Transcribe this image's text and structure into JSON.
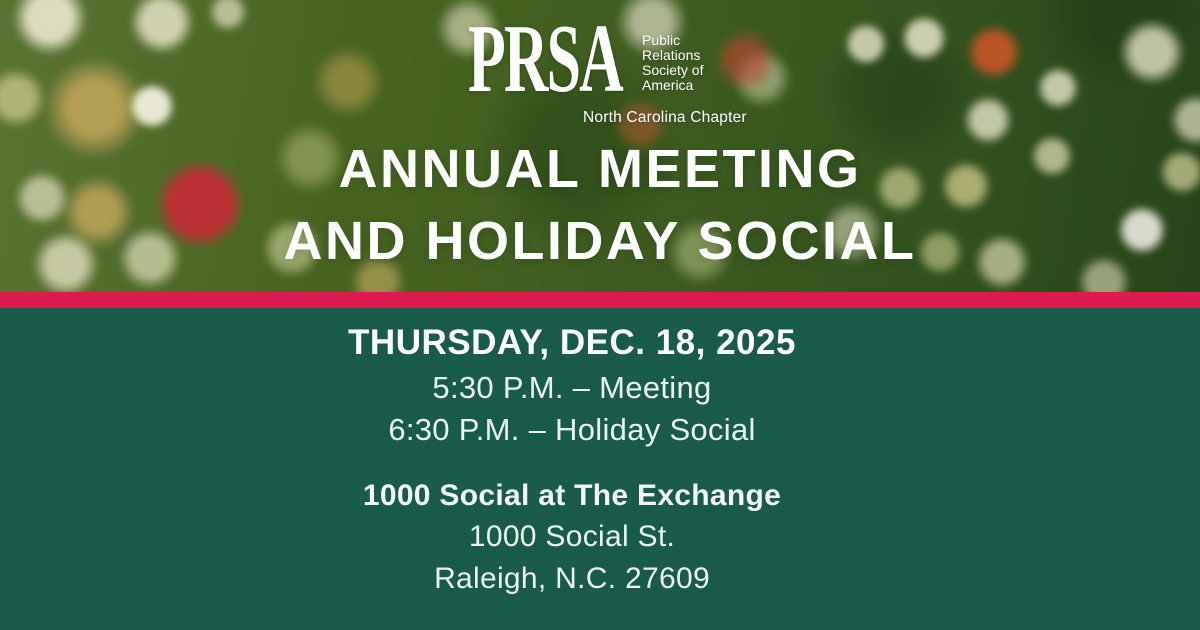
{
  "logo": {
    "wordmark": "PRSA",
    "org_lines": [
      "Public",
      "Relations",
      "Society of",
      "America"
    ],
    "chapter": "North Carolina Chapter"
  },
  "title": {
    "line1": "ANNUAL MEETING",
    "line2": "AND HOLIDAY SOCIAL"
  },
  "details": {
    "date": "THURSDAY, DEC. 18, 2025",
    "schedule": [
      "5:30 P.M. – Meeting",
      "6:30 P.M. – Holiday Social"
    ],
    "venue": "1000 Social at The Exchange",
    "address": "1000 Social St.",
    "city": "Raleigh, N.C. 27609"
  },
  "colors": {
    "stripe-red": "#DE1A51",
    "panel-teal": "#185B4B",
    "title-white": "#FFFFFF",
    "detail-mint": "#E9F2EC"
  }
}
